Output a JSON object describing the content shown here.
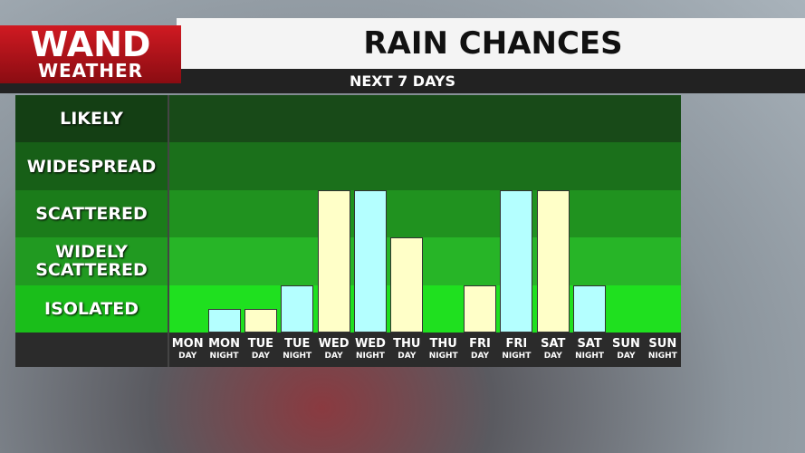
{
  "logo": {
    "line1": "WAND",
    "line2": "WEATHER"
  },
  "chart_data": {
    "type": "bar",
    "title": "RAIN CHANCES",
    "subtitle": "NEXT 7 DAYS",
    "categories": [
      "MON",
      "MON",
      "TUE",
      "TUE",
      "WED",
      "WED",
      "THU",
      "THU",
      "FRI",
      "FRI",
      "SAT",
      "SAT",
      "SUN",
      "SUN"
    ],
    "category_sublabels": [
      "DAY",
      "NIGHT",
      "DAY",
      "NIGHT",
      "DAY",
      "NIGHT",
      "DAY",
      "NIGHT",
      "DAY",
      "NIGHT",
      "DAY",
      "NIGHT",
      "DAY",
      "NIGHT"
    ],
    "values": [
      0,
      0.5,
      0.5,
      1,
      3,
      3,
      2,
      0,
      1,
      3,
      3,
      1,
      0,
      0
    ],
    "bar_colors": [
      "#ffffc8",
      "#b4ffff",
      "#ffffc8",
      "#b4ffff",
      "#ffffc8",
      "#b4ffff",
      "#ffffc8",
      "#b4ffff",
      "#ffffc8",
      "#b4ffff",
      "#ffffc8",
      "#b4ffff",
      "#ffffc8",
      "#b4ffff"
    ],
    "ylim": [
      0,
      5
    ],
    "yticks": [
      {
        "value": 0.5,
        "label": "ISOLATED"
      },
      {
        "value": 1.5,
        "label": "WIDELY SCATTERED"
      },
      {
        "value": 2.5,
        "label": "SCATTERED"
      },
      {
        "value": 3.5,
        "label": "WIDESPREAD"
      },
      {
        "value": 4.5,
        "label": "LIKELY"
      }
    ],
    "band_colors": [
      "#1fe01f",
      "#27b527",
      "#20921f",
      "#1b701b",
      "#184a18"
    ]
  }
}
